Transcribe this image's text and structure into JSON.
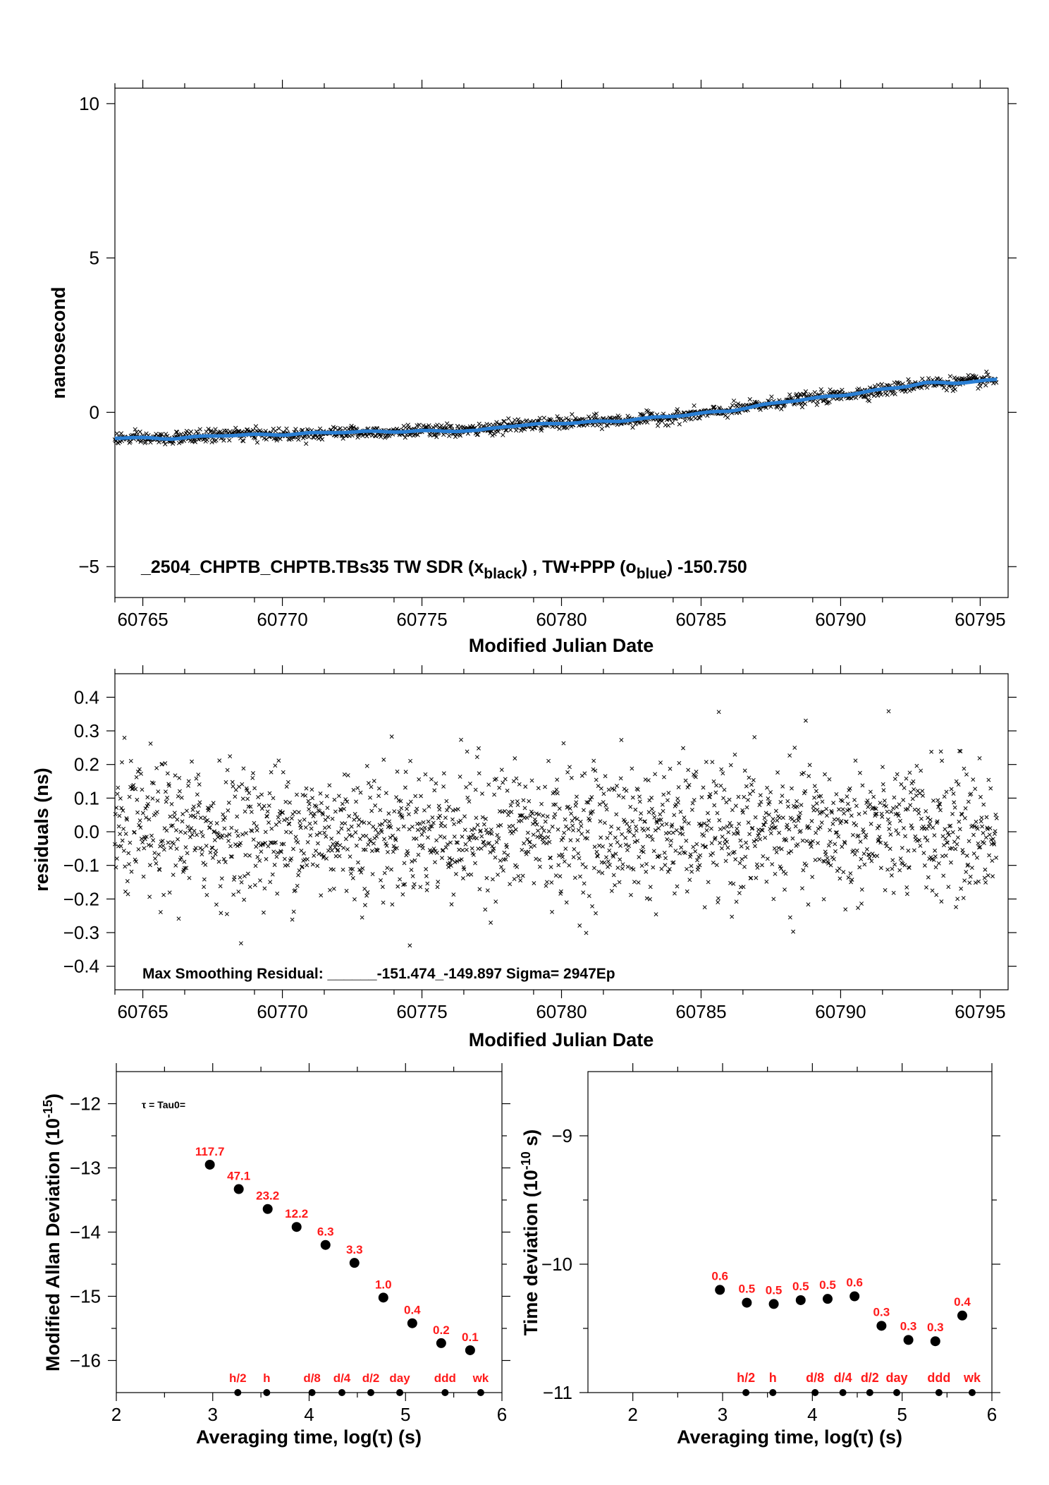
{
  "colors": {
    "black": "#000000",
    "blue": "#2a7fd4",
    "red": "#ff1a1a"
  },
  "chart_data": [
    {
      "type": "scatter",
      "id": "time-series",
      "xlabel": "Modified Julian Date",
      "ylabel": "nanosecond",
      "xlim": [
        60764,
        60796
      ],
      "ylim": [
        -6,
        10.5
      ],
      "xticks": [
        "60765",
        "60770",
        "60775",
        "60780",
        "60785",
        "60790",
        "60795"
      ],
      "yticks": [
        "−5",
        "0",
        "5",
        "10"
      ],
      "annotation_prefix": "_2504_CHPTB_CHPTB.TBs35     TW SDR (x",
      "annotation_sub1": "black",
      "annotation_mid": ") ,  TW+PPP (o",
      "annotation_sub2": "blue",
      "annotation_suffix": ")  -150.750",
      "series": [
        {
          "marker": "x",
          "color": "#000000",
          "trend": [
            [
              60764,
              -0.85
            ],
            [
              60766,
              -0.85
            ],
            [
              60768,
              -0.72
            ],
            [
              60770,
              -0.72
            ],
            [
              60772,
              -0.65
            ],
            [
              60774,
              -0.62
            ],
            [
              60776,
              -0.6
            ],
            [
              60777,
              -0.58
            ],
            [
              60778,
              -0.45
            ],
            [
              60780,
              -0.35
            ],
            [
              60782,
              -0.28
            ],
            [
              60784,
              -0.15
            ],
            [
              60786,
              0.05
            ],
            [
              60788,
              0.35
            ],
            [
              60790,
              0.55
            ],
            [
              60792,
              0.78
            ],
            [
              60793,
              0.95
            ],
            [
              60794,
              0.95
            ],
            [
              60795.6,
              1.05
            ]
          ]
        },
        {
          "marker": "line",
          "color": "#2a7fd4",
          "trend": [
            [
              60764,
              -0.82
            ],
            [
              60766,
              -0.85
            ],
            [
              60768,
              -0.74
            ],
            [
              60770,
              -0.72
            ],
            [
              60772,
              -0.64
            ],
            [
              60774,
              -0.62
            ],
            [
              60776,
              -0.6
            ],
            [
              60777,
              -0.6
            ],
            [
              60778,
              -0.45
            ],
            [
              60780,
              -0.35
            ],
            [
              60782,
              -0.28
            ],
            [
              60784,
              -0.12
            ],
            [
              60786,
              0.05
            ],
            [
              60788,
              0.35
            ],
            [
              60790,
              0.55
            ],
            [
              60792,
              0.8
            ],
            [
              60793,
              0.95
            ],
            [
              60794,
              0.95
            ],
            [
              60795.6,
              1.05
            ]
          ]
        }
      ]
    },
    {
      "type": "scatter",
      "id": "residuals",
      "xlabel": "Modified Julian Date",
      "ylabel": "residuals (ns)",
      "xlim": [
        60764,
        60796
      ],
      "ylim": [
        -0.47,
        0.47
      ],
      "xticks": [
        "60765",
        "60770",
        "60775",
        "60780",
        "60785",
        "60790",
        "60795"
      ],
      "yticks": [
        "−0.4",
        "−0.3",
        "−0.2",
        "−0.1",
        "0.0",
        "0.1",
        "0.2",
        "0.3",
        "0.4"
      ],
      "annotation": "Max Smoothing Residual: ______-151.474_-149.897  Sigma= 2947Ep",
      "sigma": 0.1
    },
    {
      "type": "scatter",
      "id": "mdev",
      "xlabel": "Averaging time, log(τ) (s)",
      "ylabel_main": "Modified Allan Deviation (10",
      "ylabel_sup": "-15",
      "ylabel_tail": ")",
      "xlim": [
        2,
        6
      ],
      "ylim": [
        -16.5,
        -11.5
      ],
      "xticks": [
        "2",
        "3",
        "4",
        "5",
        "6"
      ],
      "yticks": [
        "−12",
        "−13",
        "−14",
        "−15",
        "−16"
      ],
      "annotation": "τ = Tau0=",
      "points": [
        [
          2.97,
          -12.95
        ],
        [
          3.27,
          -13.33
        ],
        [
          3.57,
          -13.64
        ],
        [
          3.87,
          -13.92
        ],
        [
          4.17,
          -14.2
        ],
        [
          4.47,
          -14.48
        ],
        [
          4.77,
          -15.02
        ],
        [
          5.07,
          -15.42
        ],
        [
          5.37,
          -15.73
        ],
        [
          5.67,
          -15.84
        ]
      ],
      "labels": [
        "117.7",
        "47.1",
        "23.2",
        "12.2",
        "6.3",
        "3.3",
        "1.0",
        "0.4",
        "0.2",
        "0.1"
      ],
      "markers": [
        [
          3.26,
          "h/2"
        ],
        [
          3.56,
          "h"
        ],
        [
          4.03,
          "d/8"
        ],
        [
          4.34,
          "d/4"
        ],
        [
          4.64,
          "d/2"
        ],
        [
          4.94,
          "day"
        ],
        [
          5.41,
          "ddd"
        ],
        [
          5.78,
          "wk"
        ]
      ]
    },
    {
      "type": "scatter",
      "id": "tdev",
      "xlabel": "Averaging time, log(τ) (s)",
      "ylabel_main": "Time deviation (10",
      "ylabel_sup": "-10",
      "ylabel_tail": " s)",
      "xlim": [
        1.5,
        6.0
      ],
      "ylim": [
        -11,
        -8.5
      ],
      "xticks": [
        "2",
        "3",
        "4",
        "5",
        "6"
      ],
      "yticks": [
        "−9",
        "−10",
        "−11"
      ],
      "points": [
        [
          2.97,
          -10.2
        ],
        [
          3.27,
          -10.3
        ],
        [
          3.57,
          -10.31
        ],
        [
          3.87,
          -10.28
        ],
        [
          4.17,
          -10.27
        ],
        [
          4.47,
          -10.25
        ],
        [
          4.77,
          -10.48
        ],
        [
          5.07,
          -10.59
        ],
        [
          5.37,
          -10.6
        ],
        [
          5.67,
          -10.4
        ]
      ],
      "labels": [
        "0.6",
        "0.5",
        "0.5",
        "0.5",
        "0.5",
        "0.6",
        "0.3",
        "0.3",
        "0.3",
        "0.4"
      ],
      "markers": [
        [
          3.26,
          "h/2"
        ],
        [
          3.56,
          "h"
        ],
        [
          4.03,
          "d/8"
        ],
        [
          4.34,
          "d/4"
        ],
        [
          4.64,
          "d/2"
        ],
        [
          4.94,
          "day"
        ],
        [
          5.41,
          "ddd"
        ],
        [
          5.78,
          "wk"
        ]
      ]
    }
  ]
}
